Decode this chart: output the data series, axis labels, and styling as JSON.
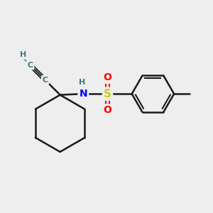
{
  "background_color": "#eeeeee",
  "atom_colors": {
    "C": "#3d7a7a",
    "N": "#0000ff",
    "S": "#cccc00",
    "O": "#ff0000",
    "H": "#3d7a7a"
  },
  "bond_color": "#1a1a1a",
  "figsize": [
    3.0,
    3.0
  ],
  "dpi": 100,
  "xlim": [
    0,
    10
  ],
  "ylim": [
    0,
    10
  ]
}
